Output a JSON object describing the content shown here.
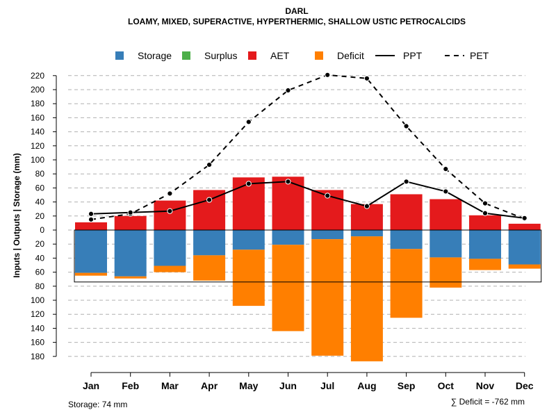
{
  "chart_data": {
    "type": "bar",
    "title": "DARL",
    "subtitle": "LOAMY, MIXED, SUPERACTIVE, HYPERTHERMIC, SHALLOW USTIC PETROCALCIDS",
    "ylabel": "Inputs | Outputs | Storage     (mm)",
    "ylim": [
      -180,
      220
    ],
    "yticks": [
      220,
      200,
      180,
      160,
      140,
      120,
      100,
      80,
      60,
      40,
      20,
      0,
      -20,
      -40,
      -60,
      -80,
      -100,
      -120,
      -140,
      -160,
      -180
    ],
    "categories": [
      "Jan",
      "Feb",
      "Mar",
      "Apr",
      "May",
      "Jun",
      "Jul",
      "Aug",
      "Sep",
      "Oct",
      "Nov",
      "Dec"
    ],
    "legend": [
      {
        "key": "storage",
        "label": "Storage",
        "color": "#377eb8",
        "kind": "box"
      },
      {
        "key": "surplus",
        "label": "Surplus",
        "color": "#4daf4a",
        "kind": "box"
      },
      {
        "key": "aet",
        "label": "AET",
        "color": "#e41a1c",
        "kind": "box"
      },
      {
        "key": "deficit",
        "label": "Deficit",
        "color": "#ff7f00",
        "kind": "box"
      },
      {
        "key": "ppt",
        "label": "PPT",
        "color": "#000000",
        "kind": "solid"
      },
      {
        "key": "pet",
        "label": "PET",
        "color": "#000000",
        "kind": "dashed"
      }
    ],
    "series": [
      {
        "name": "AET",
        "values": [
          11,
          20,
          42,
          57,
          75,
          76,
          57,
          37,
          51,
          44,
          21,
          9
        ]
      },
      {
        "name": "Storage",
        "values": [
          61,
          66,
          51,
          36,
          28,
          21,
          13,
          9,
          27,
          39,
          41,
          49
        ]
      },
      {
        "name": "Deficit",
        "values": [
          4,
          3,
          9,
          36,
          80,
          123,
          166,
          178,
          98,
          43,
          16,
          6
        ]
      },
      {
        "name": "Surplus",
        "values": [
          0,
          0,
          0,
          0,
          0,
          0,
          0,
          0,
          0,
          0,
          0,
          0
        ]
      },
      {
        "name": "PPT",
        "values": [
          23,
          25,
          27,
          43,
          66,
          69,
          49,
          34,
          69,
          55,
          24,
          17
        ]
      },
      {
        "name": "PET",
        "values": [
          15,
          23,
          52,
          93,
          154,
          199,
          221,
          216,
          148,
          87,
          38,
          16
        ]
      }
    ],
    "storage_capacity": 74,
    "footer_storage": "Storage: 74 mm",
    "footer_deficit": "∑ Deficit = -762 mm"
  }
}
